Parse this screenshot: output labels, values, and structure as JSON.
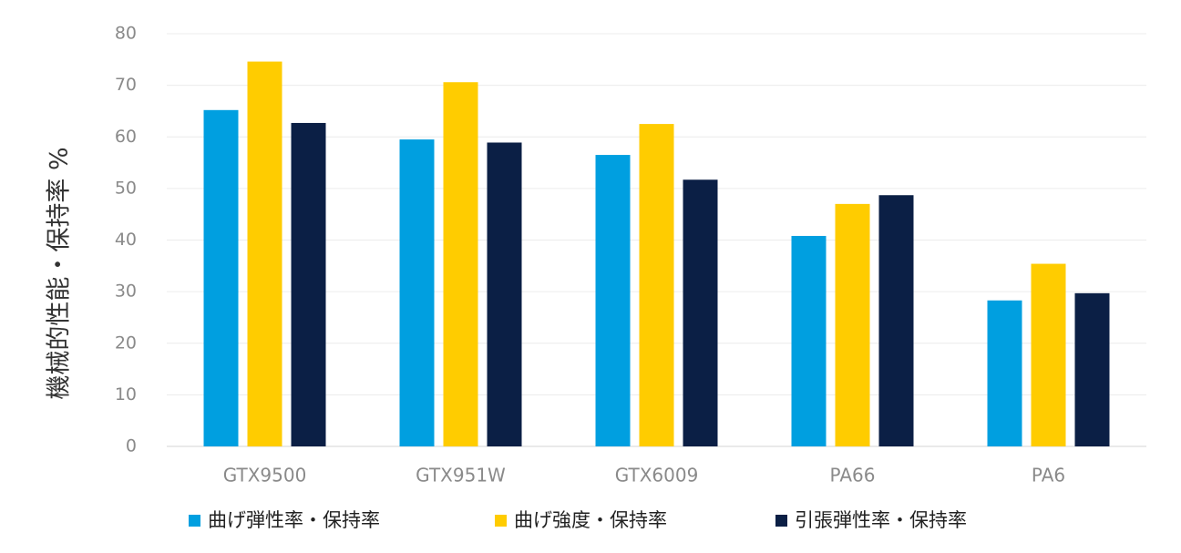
{
  "chart_data": {
    "type": "bar",
    "ylabel": "機械的性能・保持率 %",
    "ylim": [
      0,
      80
    ],
    "yticks": [
      0,
      10,
      20,
      30,
      40,
      50,
      60,
      70,
      80
    ],
    "grid": true,
    "legend_position": "bottom",
    "categories": [
      "GTX9500",
      "GTX951W",
      "GTX6009",
      "PA66",
      "PA6"
    ],
    "series": [
      {
        "name": "曲げ弾性率・保持率",
        "color": "#009fe0",
        "values": [
          65.2,
          59.5,
          56.5,
          40.8,
          28.3
        ]
      },
      {
        "name": "曲げ強度・保持率",
        "color": "#ffcc00",
        "values": [
          74.6,
          70.6,
          62.5,
          47.0,
          35.4
        ]
      },
      {
        "name": "引張弾性率・保持率",
        "color": "#0b1f45",
        "values": [
          62.7,
          58.9,
          51.7,
          48.7,
          29.7
        ]
      }
    ]
  }
}
